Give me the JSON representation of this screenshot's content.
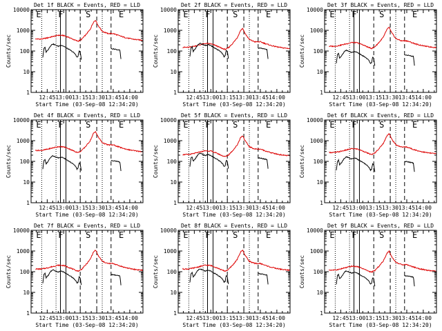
{
  "chart_data": {
    "type": "line",
    "common": {
      "ylabel": "Counts/sec",
      "xlabel": "Start Time (03-Sep-08 12:34:20)",
      "x_ticks": [
        "12:45",
        "13:00",
        "13:15",
        "13:30",
        "13:45",
        "14:00"
      ],
      "y_ticks": [
        "1",
        "10",
        "100",
        "1000",
        "10000"
      ],
      "y_scale": "log",
      "ylim": [
        1,
        10000
      ],
      "xlim": [
        "12:34:20",
        "14:12"
      ],
      "title_suffix": " BLACK = Events, RED = LLD",
      "interval_letters": [
        "E",
        "F",
        "S",
        "E"
      ],
      "series_names": [
        "Events",
        "LLD"
      ],
      "colors": {
        "events": "#000000",
        "lld": "#dd0000"
      },
      "markers": {
        "dotted": [
          "12:40",
          "12:53",
          "13:35"
        ],
        "solid": [
          "12:57",
          "13:02"
        ],
        "dashed": [
          "13:15",
          "13:30",
          "13:43"
        ]
      },
      "events_segments": [
        [
          [
            "12:41",
            50
          ],
          [
            "12:42",
            130
          ],
          [
            "12:43",
            150
          ],
          [
            "12:44",
            90
          ],
          [
            "12:46",
            120
          ],
          [
            "12:48",
            180
          ],
          [
            "12:50",
            220
          ],
          [
            "12:52",
            200
          ],
          [
            "12:55",
            170
          ],
          [
            "12:58",
            190
          ],
          [
            "13:00",
            170
          ],
          [
            "13:03",
            135
          ],
          [
            "13:06",
            110
          ],
          [
            "13:09",
            85
          ],
          [
            "13:11",
            65
          ],
          [
            "13:12",
            50
          ],
          [
            "13:13",
            55
          ],
          [
            "13:14",
            100
          ],
          [
            "13:15",
            90
          ],
          [
            "13:16",
            40
          ]
        ],
        [
          [
            "13:43",
            130
          ],
          [
            "13:46",
            125
          ],
          [
            "13:49",
            115
          ],
          [
            "13:51",
            110
          ],
          [
            "13:52",
            40
          ]
        ]
      ],
      "lld_series": [
        [
          "12:34:20",
          380
        ],
        [
          "12:40",
          380
        ],
        [
          "12:45",
          430
        ],
        [
          "12:50",
          500
        ],
        [
          "12:55",
          580
        ],
        [
          "13:00",
          560
        ],
        [
          "13:05",
          450
        ],
        [
          "13:10",
          340
        ],
        [
          "13:13",
          300
        ],
        [
          "13:16",
          360
        ],
        [
          "13:20",
          600
        ],
        [
          "13:24",
          1100
        ],
        [
          "13:27",
          2500
        ],
        [
          "13:29",
          3100
        ],
        [
          "13:31",
          1800
        ],
        [
          "13:35",
          900
        ],
        [
          "13:40",
          700
        ],
        [
          "13:45",
          700
        ],
        [
          "13:50",
          560
        ],
        [
          "13:55",
          460
        ],
        [
          "14:00",
          400
        ],
        [
          "14:05",
          360
        ],
        [
          "14:12",
          330
        ]
      ]
    },
    "panels": [
      {
        "title": "Det 1f",
        "event_offset": 0,
        "lld_offset": 0
      },
      {
        "title": "Det 2f",
        "event_offset": 0.03,
        "lld_offset": -0.4
      },
      {
        "title": "Det 3f",
        "event_offset": -0.3,
        "lld_offset": -0.35
      },
      {
        "title": "Det 4f",
        "event_offset": -0.07,
        "lld_offset": -0.05
      },
      {
        "title": "Det 5f",
        "event_offset": 0.05,
        "lld_offset": -0.25
      },
      {
        "title": "Det 6f",
        "event_offset": -0.12,
        "lld_offset": -0.15
      },
      {
        "title": "Det 7f",
        "event_offset": -0.25,
        "lld_offset": -0.45
      },
      {
        "title": "Det 8f",
        "event_offset": -0.2,
        "lld_offset": -0.45
      },
      {
        "title": "Det 9f",
        "event_offset": -0.3,
        "lld_offset": -0.5
      }
    ]
  }
}
